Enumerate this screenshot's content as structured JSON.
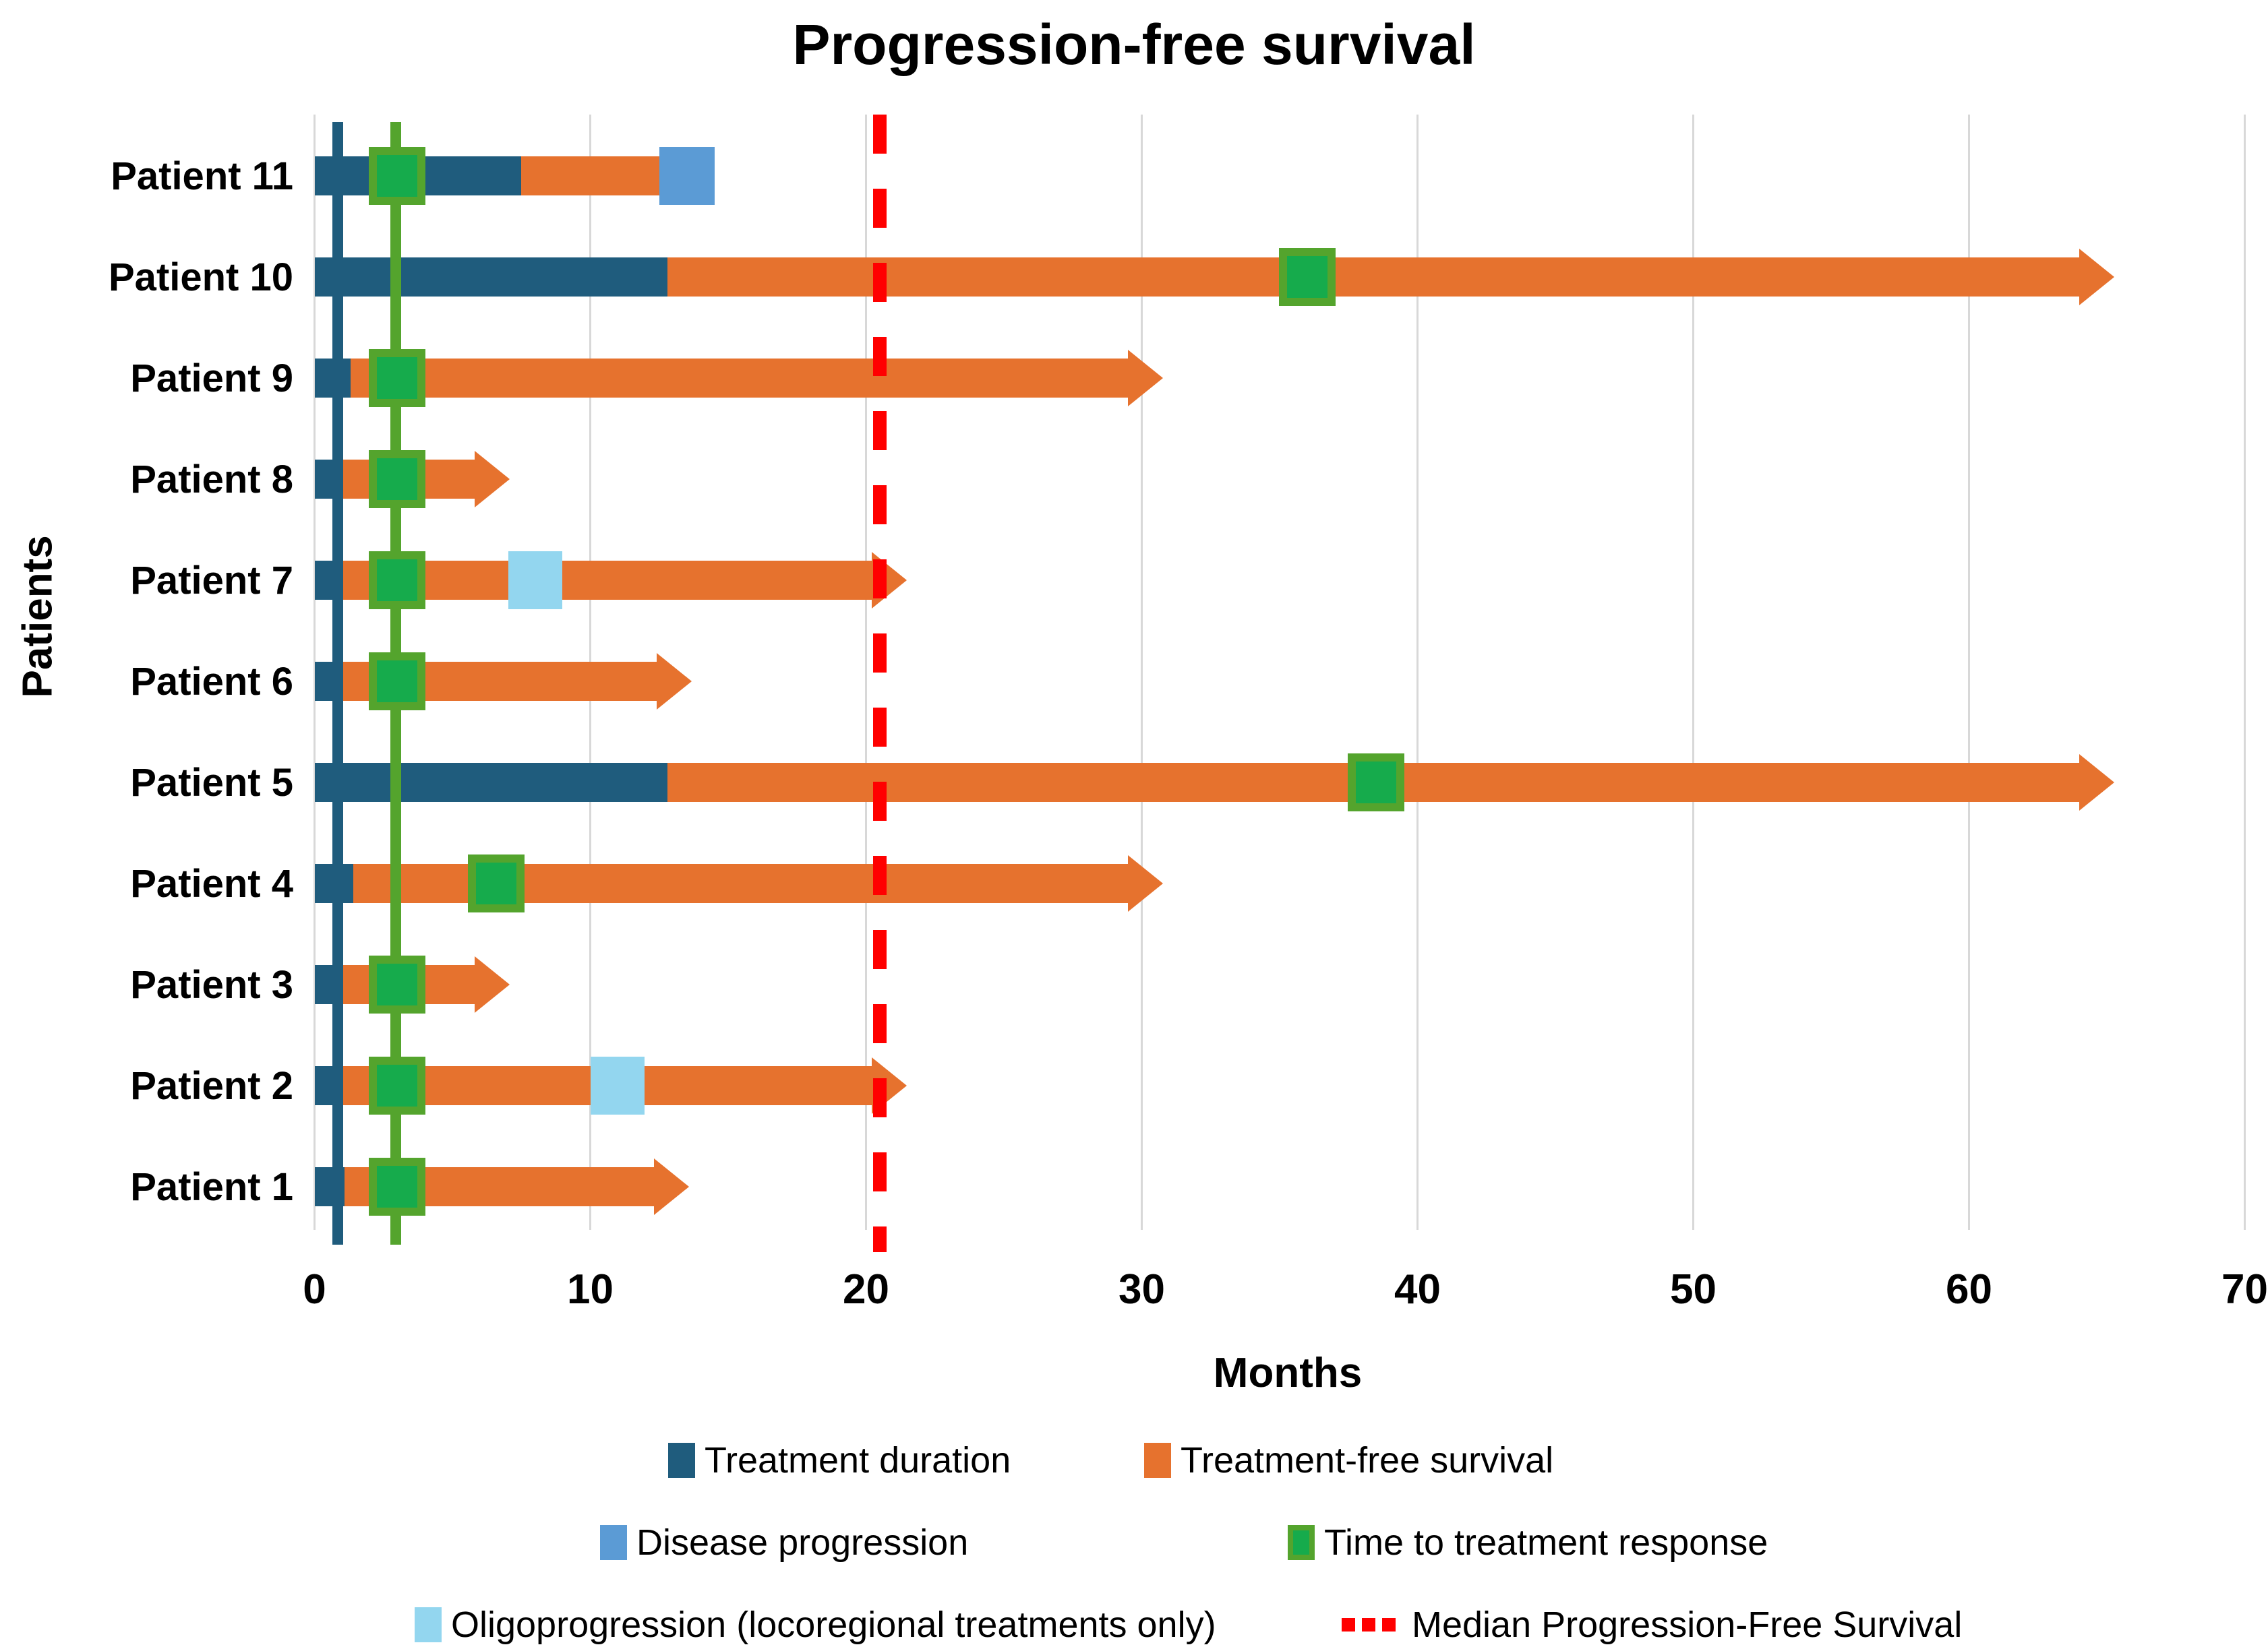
{
  "chart_data": {
    "type": "bar",
    "variant": "horizontal-swimmer-plot",
    "title": "Progression-free survival",
    "xlabel": "Months",
    "ylabel": "Patients",
    "xlim": [
      0,
      70
    ],
    "xticks": [
      "0",
      "10",
      "20",
      "30",
      "40",
      "50",
      "60",
      "70"
    ],
    "grid": "vertical",
    "legend_position": "bottom",
    "patients": [
      {
        "label": "Patient 11",
        "treatment_duration": 7.5,
        "survival_end": 12.5,
        "ongoing": false,
        "time_to_response": 3,
        "disease_progression": 13.5,
        "oligoprogression": null
      },
      {
        "label": "Patient 10",
        "treatment_duration": 12.8,
        "survival_end": 64,
        "ongoing": true,
        "time_to_response": 36,
        "disease_progression": null,
        "oligoprogression": null
      },
      {
        "label": "Patient 9",
        "treatment_duration": 1.3,
        "survival_end": 29.5,
        "ongoing": true,
        "time_to_response": 3,
        "disease_progression": null,
        "oligoprogression": null
      },
      {
        "label": "Patient 8",
        "treatment_duration": 1,
        "survival_end": 5.8,
        "ongoing": true,
        "time_to_response": 3,
        "disease_progression": null,
        "oligoprogression": null
      },
      {
        "label": "Patient 7",
        "treatment_duration": 1,
        "survival_end": 20.2,
        "ongoing": true,
        "time_to_response": 3,
        "disease_progression": null,
        "oligoprogression": 8
      },
      {
        "label": "Patient 6",
        "treatment_duration": 1,
        "survival_end": 12.4,
        "ongoing": true,
        "time_to_response": 3,
        "disease_progression": null,
        "oligoprogression": null
      },
      {
        "label": "Patient 5",
        "treatment_duration": 12.8,
        "survival_end": 64,
        "ongoing": true,
        "time_to_response": 38.5,
        "disease_progression": null,
        "oligoprogression": null
      },
      {
        "label": "Patient 4",
        "treatment_duration": 1.4,
        "survival_end": 29.5,
        "ongoing": true,
        "time_to_response": 6.6,
        "disease_progression": null,
        "oligoprogression": null
      },
      {
        "label": "Patient 3",
        "treatment_duration": 1,
        "survival_end": 5.8,
        "ongoing": true,
        "time_to_response": 3,
        "disease_progression": null,
        "oligoprogression": null
      },
      {
        "label": "Patient 2",
        "treatment_duration": 1,
        "survival_end": 20.2,
        "ongoing": true,
        "time_to_response": 3,
        "disease_progression": null,
        "oligoprogression": 11
      },
      {
        "label": "Patient 1",
        "treatment_duration": 1.1,
        "survival_end": 12.3,
        "ongoing": true,
        "time_to_response": 3,
        "disease_progression": null,
        "oligoprogression": null
      }
    ],
    "reference_lines": [
      {
        "name": "treatment-start-line",
        "x": 0.85,
        "style": "solid",
        "color": "#1f5c7d"
      },
      {
        "name": "response-line",
        "x": 2.95,
        "style": "solid",
        "color": "#54a42d"
      },
      {
        "name": "median-pfs-line",
        "x": 20.5,
        "style": "dashed",
        "color": "#ff0000"
      }
    ],
    "colors": {
      "treatment_duration": "#1f5c7d",
      "treatment_free_survival": "#e6722e",
      "disease_progression": "#5b9bd5",
      "time_to_response_fill": "#16ab4c",
      "time_to_response_border": "#54a42d",
      "oligoprogression": "#93d6ef",
      "median_pfs": "#ff0000",
      "gridline": "#d8d8d8"
    },
    "legend": {
      "rows": [
        [
          {
            "swatch": "treatment_duration",
            "label": "Treatment duration"
          },
          {
            "swatch": "treatment_free_survival",
            "label": "Treatment-free survival"
          }
        ],
        [
          {
            "swatch": "disease_progression",
            "label": "Disease progression"
          },
          {
            "swatch": "time_to_response",
            "label": "Time to treatment response"
          }
        ],
        [
          {
            "swatch": "oligoprogression",
            "label": "Oligoprogression (locoregional treatments only)"
          },
          {
            "swatch": "median_dotted",
            "label": "Median Progression-Free Survival"
          }
        ]
      ]
    }
  }
}
